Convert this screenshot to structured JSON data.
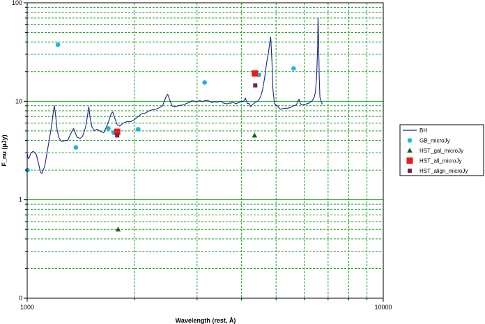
{
  "chart_data": {
    "type": "scatter",
    "title": "",
    "xlabel": "Wavelength (rest, Å)",
    "ylabel": "F_nu (µJy)",
    "xscale": "log",
    "yscale": "log",
    "xlim": [
      1000,
      10000
    ],
    "ylim": [
      0.1,
      100
    ],
    "x_ticks": [
      1000,
      10000
    ],
    "y_ticks": [
      {
        "value": 0.1,
        "label": "0"
      },
      {
        "value": 1,
        "label": "1"
      },
      {
        "value": 10,
        "label": "10"
      },
      {
        "value": 100,
        "label": "100"
      }
    ],
    "grid": true,
    "legend_position": "right",
    "colors": {
      "line": "#1a237e",
      "grid": "#1f9e2a",
      "gb": "#1fb6e0",
      "hst_gal": "#1b5e20",
      "hst_all": "#e41e14",
      "hst_align": "#7b1f52"
    },
    "series": [
      {
        "name": "BH",
        "kind": "line",
        "points": [
          [
            970,
            2.9
          ],
          [
            990,
            2.75
          ],
          [
            1010,
            2.6
          ],
          [
            1025,
            3.0
          ],
          [
            1040,
            3.1
          ],
          [
            1060,
            2.9
          ],
          [
            1080,
            2.2
          ],
          [
            1090,
            1.9
          ],
          [
            1100,
            1.85
          ],
          [
            1120,
            2.2
          ],
          [
            1150,
            3.8
          ],
          [
            1170,
            5.5
          ],
          [
            1185,
            8.0
          ],
          [
            1192,
            9.0
          ],
          [
            1200,
            7.5
          ],
          [
            1215,
            5.0
          ],
          [
            1230,
            4.2
          ],
          [
            1250,
            3.9
          ],
          [
            1280,
            4.0
          ],
          [
            1300,
            4.0
          ],
          [
            1330,
            4.8
          ],
          [
            1350,
            5.3
          ],
          [
            1380,
            4.3
          ],
          [
            1410,
            4.2
          ],
          [
            1430,
            4.4
          ],
          [
            1460,
            5.5
          ],
          [
            1480,
            7.5
          ],
          [
            1490,
            8.8
          ],
          [
            1500,
            7.0
          ],
          [
            1520,
            5.5
          ],
          [
            1545,
            5.0
          ],
          [
            1570,
            5.2
          ],
          [
            1600,
            5.0
          ],
          [
            1640,
            4.8
          ],
          [
            1670,
            5.5
          ],
          [
            1700,
            6.5
          ],
          [
            1720,
            7.5
          ],
          [
            1740,
            7.8
          ],
          [
            1760,
            6.8
          ],
          [
            1790,
            5.8
          ],
          [
            1820,
            5.6
          ],
          [
            1860,
            6.0
          ],
          [
            1900,
            6.2
          ],
          [
            1950,
            6.2
          ],
          [
            2000,
            6.5
          ],
          [
            2050,
            7.0
          ],
          [
            2100,
            7.5
          ],
          [
            2150,
            7.6
          ],
          [
            2200,
            8.0
          ],
          [
            2250,
            8.2
          ],
          [
            2300,
            8.3
          ],
          [
            2350,
            8.6
          ],
          [
            2400,
            9.0
          ],
          [
            2450,
            11.0
          ],
          [
            2480,
            11.8
          ],
          [
            2510,
            10.5
          ],
          [
            2550,
            9.0
          ],
          [
            2600,
            8.8
          ],
          [
            2650,
            9.0
          ],
          [
            2700,
            9.1
          ],
          [
            2750,
            9.2
          ],
          [
            2800,
            9.5
          ],
          [
            2850,
            9.7
          ],
          [
            2900,
            10.1
          ],
          [
            2950,
            10.0
          ],
          [
            3000,
            9.8
          ],
          [
            3050,
            10.2
          ],
          [
            3100,
            9.9
          ],
          [
            3150,
            10.1
          ],
          [
            3200,
            10.2
          ],
          [
            3250,
            10.0
          ],
          [
            3300,
            9.7
          ],
          [
            3350,
            9.9
          ],
          [
            3400,
            9.8
          ],
          [
            3450,
            9.9
          ],
          [
            3500,
            10.0
          ],
          [
            3550,
            9.6
          ],
          [
            3600,
            9.5
          ],
          [
            3650,
            9.4
          ],
          [
            3700,
            9.6
          ],
          [
            3730,
            9.5
          ],
          [
            3760,
            9.8
          ],
          [
            3800,
            9.7
          ],
          [
            3850,
            9.4
          ],
          [
            3900,
            9.6
          ],
          [
            3950,
            9.7
          ],
          [
            4000,
            10.0
          ],
          [
            4050,
            9.9
          ],
          [
            4100,
            10.8
          ],
          [
            4150,
            9.5
          ],
          [
            4200,
            9.5
          ],
          [
            4240,
            8.8
          ],
          [
            4280,
            9.2
          ],
          [
            4320,
            9.4
          ],
          [
            4380,
            9.8
          ],
          [
            4450,
            10.1
          ],
          [
            4520,
            11.0
          ],
          [
            4580,
            13.0
          ],
          [
            4640,
            17.0
          ],
          [
            4700,
            24.0
          ],
          [
            4750,
            30.0
          ],
          [
            4790,
            37.0
          ],
          [
            4830,
            45.0
          ],
          [
            4870,
            25.0
          ],
          [
            4900,
            13.0
          ],
          [
            4950,
            9.5
          ],
          [
            5000,
            9.0
          ],
          [
            5050,
            9.0
          ],
          [
            5100,
            8.5
          ],
          [
            5150,
            8.3
          ],
          [
            5200,
            8.4
          ],
          [
            5300,
            8.5
          ],
          [
            5400,
            8.5
          ],
          [
            5500,
            8.7
          ],
          [
            5600,
            9.0
          ],
          [
            5700,
            9.2
          ],
          [
            5800,
            10.5
          ],
          [
            5850,
            9.5
          ],
          [
            5900,
            9.2
          ],
          [
            6000,
            9.3
          ],
          [
            6100,
            9.4
          ],
          [
            6200,
            9.6
          ],
          [
            6300,
            10.0
          ],
          [
            6400,
            11.0
          ],
          [
            6450,
            12.5
          ],
          [
            6500,
            18.0
          ],
          [
            6540,
            35.0
          ],
          [
            6560,
            70.0
          ],
          [
            6580,
            45.0
          ],
          [
            6610,
            18.0
          ],
          [
            6640,
            11.0
          ],
          [
            6700,
            9.8
          ],
          [
            6750,
            9.3
          ]
        ]
      },
      {
        "name": "GB_microJy",
        "kind": "circle",
        "points": [
          [
            1000,
            2.0
          ],
          [
            1220,
            37.5
          ],
          [
            1370,
            3.4
          ],
          [
            1690,
            5.3
          ],
          [
            1750,
            4.8
          ],
          [
            2050,
            5.2
          ],
          [
            3150,
            15.5
          ],
          [
            4480,
            18.5
          ],
          [
            5600,
            21.5
          ]
        ]
      },
      {
        "name": "HST_gal_microJy",
        "kind": "triangle",
        "points": [
          [
            1800,
            0.5
          ],
          [
            4350,
            4.5
          ]
        ]
      },
      {
        "name": "HST_all_microJy",
        "kind": "square",
        "points": [
          [
            1790,
            4.9
          ],
          [
            4360,
            19.2
          ]
        ]
      },
      {
        "name": "HST_align_microJy",
        "kind": "square-small",
        "points": [
          [
            1790,
            4.5
          ],
          [
            4370,
            14.5
          ]
        ]
      }
    ]
  }
}
